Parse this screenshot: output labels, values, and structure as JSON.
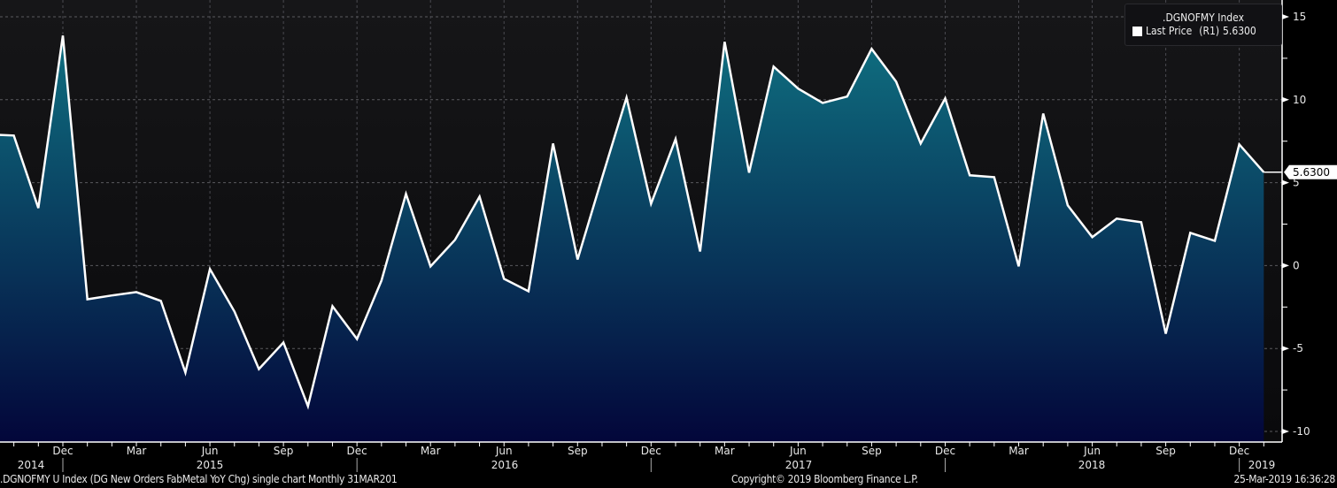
{
  "chart_data": {
    "type": "area",
    "title": ".DGNOFMY Index",
    "legend": {
      "label": "Last Price",
      "axis": "(R1)",
      "value": "5.6300",
      "placement": "top-right"
    },
    "last_value_label": "5.6300",
    "yaxis": {
      "side": "right",
      "ylim": [
        -10,
        15
      ],
      "ticks": [
        15,
        10,
        5,
        0,
        -5,
        -10
      ]
    },
    "xaxis": {
      "month_labels": [
        "Dec",
        "Mar",
        "Jun",
        "Sep",
        "Dec",
        "Mar",
        "Jun",
        "Sep",
        "Dec",
        "Mar",
        "Jun",
        "Sep",
        "Dec",
        "Mar",
        "Jun",
        "Sep",
        "Dec"
      ],
      "year_labels": [
        "2014",
        "2015",
        "2016",
        "2017",
        "2018",
        "2019"
      ]
    },
    "grid": true,
    "colors": {
      "line": "#ffffff",
      "fill_top": "#0f6f80",
      "fill_bottom": "#03063a",
      "background_top": "#161618",
      "background_bottom": "#0a0a0c"
    },
    "x": [
      "2014-09",
      "2014-10",
      "2014-11",
      "2014-12",
      "2015-01",
      "2015-02",
      "2015-03",
      "2015-04",
      "2015-05",
      "2015-06",
      "2015-07",
      "2015-08",
      "2015-09",
      "2015-10",
      "2015-11",
      "2015-12",
      "2016-01",
      "2016-02",
      "2016-03",
      "2016-04",
      "2016-05",
      "2016-06",
      "2016-07",
      "2016-08",
      "2016-09",
      "2016-10",
      "2016-11",
      "2016-12",
      "2017-01",
      "2017-02",
      "2017-03",
      "2017-04",
      "2017-05",
      "2017-06",
      "2017-07",
      "2017-08",
      "2017-09",
      "2017-10",
      "2017-11",
      "2017-12",
      "2018-01",
      "2018-02",
      "2018-03",
      "2018-04",
      "2018-05",
      "2018-06",
      "2018-07",
      "2018-08",
      "2018-09",
      "2018-10",
      "2018-11",
      "2018-12",
      "2019-01"
    ],
    "values": [
      7.9,
      7.84,
      3.47,
      13.87,
      -2.03,
      -1.8,
      -1.6,
      -2.13,
      -6.45,
      -0.21,
      -2.77,
      -6.24,
      -4.64,
      -8.48,
      -2.45,
      -4.43,
      -0.91,
      4.32,
      -0.05,
      1.55,
      4.16,
      -0.8,
      -1.55,
      7.36,
      0.37,
      5.3,
      10.13,
      3.73,
      7.63,
      0.85,
      13.49,
      5.6,
      12.0,
      10.67,
      9.81,
      10.19,
      13.07,
      11.09,
      7.36,
      10.08,
      5.44,
      5.33,
      -0.05,
      9.17,
      3.63,
      1.71,
      2.83,
      2.61,
      -4.11,
      1.97,
      1.49,
      7.31,
      5.63
    ]
  },
  "footer": {
    "description": ".DGNOFMY U Index (DG New Orders FabMetal YoY Chg) single chart  Monthly 31MAR201",
    "copyright": "Copyright© 2019 Bloomberg Finance L.P.",
    "timestamp": "25-Mar-2019 16:36:28"
  }
}
